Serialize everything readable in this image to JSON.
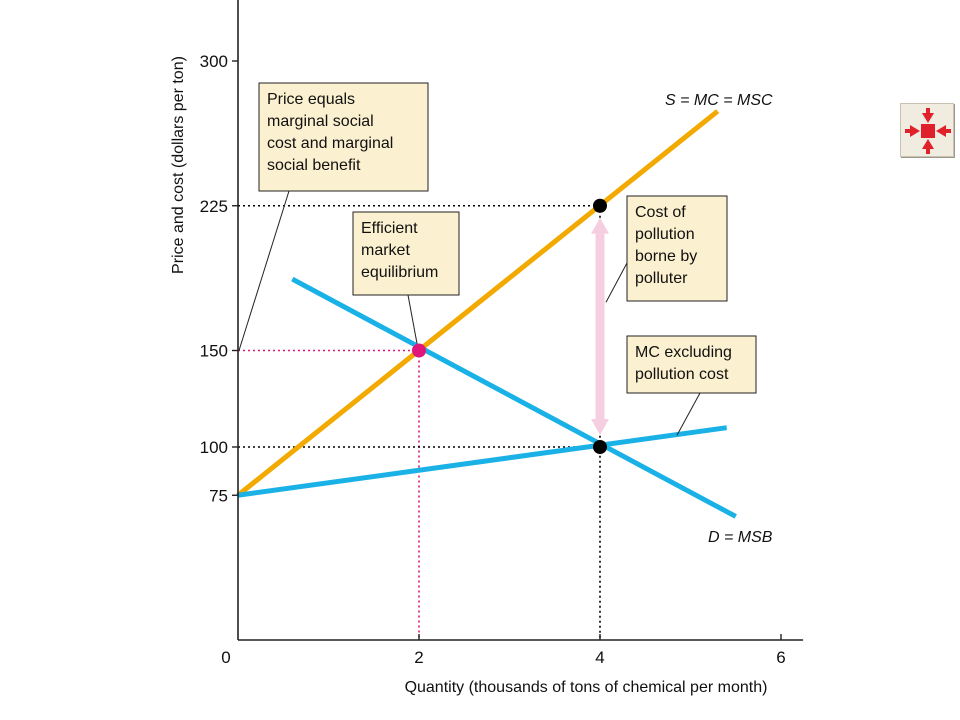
{
  "chart_data": {
    "type": "line",
    "xlabel": "Quantity (thousands of tons of chemical per month)",
    "ylabel": "Price and cost (dollars per ton)",
    "xlim": [
      0,
      6.2
    ],
    "ylim": [
      0,
      320
    ],
    "x_ticks": [
      {
        "value": 0,
        "label": "0"
      },
      {
        "value": 2,
        "label": "2",
        "color": "#e0177a"
      },
      {
        "value": 4,
        "label": "4"
      },
      {
        "value": 6,
        "label": "6"
      }
    ],
    "y_ticks": [
      {
        "value": 75,
        "label": "75"
      },
      {
        "value": 100,
        "label": "100"
      },
      {
        "value": 150,
        "label": "150",
        "color": "#e0177a"
      },
      {
        "value": 225,
        "label": "225"
      },
      {
        "value": 300,
        "label": "300"
      }
    ],
    "series": [
      {
        "name": "S = MC = MSC",
        "color": "#f2a900",
        "points": [
          [
            0,
            75
          ],
          [
            5.3,
            274
          ]
        ]
      },
      {
        "name": "D = MSB",
        "color": "#1ab2e6",
        "points": [
          [
            0.6,
            187
          ],
          [
            5.5,
            64
          ]
        ]
      },
      {
        "name": "MC excluding pollution cost",
        "color": "#1ab2e6",
        "points": [
          [
            0,
            75
          ],
          [
            5.4,
            110
          ]
        ]
      }
    ],
    "points": [
      {
        "name": "efficient-equilibrium",
        "x": 2,
        "y": 150,
        "color": "#e0177a"
      },
      {
        "name": "msc-at-4",
        "x": 4,
        "y": 225,
        "color": "#000000"
      },
      {
        "name": "mc-at-4",
        "x": 4,
        "y": 100,
        "color": "#000000"
      }
    ],
    "guides": [
      {
        "from": [
          0,
          150
        ],
        "to": [
          2,
          150
        ],
        "color": "#e0177a"
      },
      {
        "from": [
          2,
          150
        ],
        "to": [
          2,
          0
        ],
        "color": "#e0177a"
      },
      {
        "from": [
          0,
          225
        ],
        "to": [
          4,
          225
        ],
        "color": "#000000"
      },
      {
        "from": [
          0,
          100
        ],
        "to": [
          4,
          100
        ],
        "color": "#000000"
      },
      {
        "from": [
          4,
          225
        ],
        "to": [
          4,
          0
        ],
        "color": "#000000"
      }
    ],
    "arrow": {
      "x": 4,
      "from": 225,
      "to": 100,
      "color": "#f5cfe0"
    },
    "annotations": [
      {
        "lines": [
          "Price equals",
          "marginal social",
          "cost and marginal",
          "social benefit"
        ]
      },
      {
        "lines": [
          "Efficient",
          "market",
          "equilibrium"
        ]
      },
      {
        "lines": [
          "Cost of",
          "pollution",
          "borne by",
          "polluter"
        ]
      },
      {
        "lines": [
          "MC excluding",
          "pollution cost"
        ]
      }
    ]
  },
  "nav_button": {
    "icon": "shrink-arrows-icon",
    "color": "#e0202a"
  }
}
